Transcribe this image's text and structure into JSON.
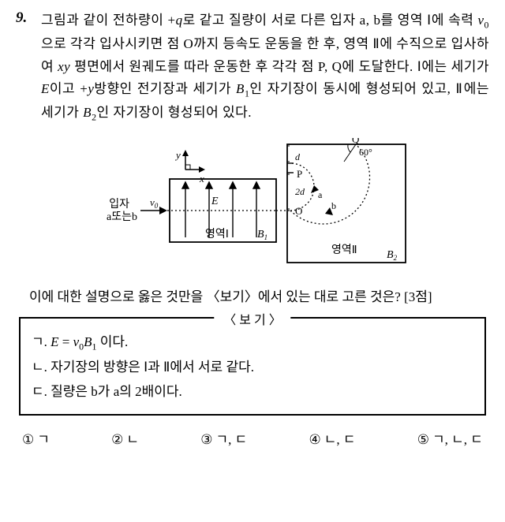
{
  "question": {
    "number": "9.",
    "text_html": "그림과 같이 전하량이 +<span class='var'>q</span>로 같고 질량이 서로 다른 입자 a, b를 영역 Ⅰ에 속력 <span class='var'>v</span><span class='sub'>0</span>으로 각각 입사시키면 점 O까지 등속도 운동을 한 후, 영역 Ⅱ에 수직으로 입사하여 <span class='var'>xy</span> 평면에서 원궤도를 따라 운동한 후 각각 점 P, Q에 도달한다. Ⅰ에는 세기가 <span class='var'>E</span>이고 +<span class='var'>y</span>방향인 전기장과 세기가 <span class='var'>B</span><span class='sub'>1</span>인 자기장이 동시에 형성되어 있고, Ⅱ에는 세기가 <span class='var'>B</span><span class='sub'>2</span>인 자기장이 형성되어 있다."
  },
  "figure": {
    "particle_label": "입자\na또는b",
    "axes": {
      "y": "y",
      "x": "x"
    },
    "v0_label": "v0",
    "region1": {
      "label": "영역Ⅰ",
      "E": "E",
      "B1": "B1"
    },
    "region2": {
      "label": "영역Ⅱ",
      "B2": "B2",
      "O": "O",
      "P": "P",
      "Q": "Q",
      "angle": "60°",
      "d": "d",
      "two_d": "2d",
      "a_label": "a",
      "b_label": "b"
    },
    "colors": {
      "stroke": "#000000",
      "fill_bg": "#ffffff"
    },
    "line_width": 1.6
  },
  "sub_question": "이에 대한 설명으로 옳은 것만을 〈보기〉에서 있는 대로 고른 것은? [3점]",
  "bogi": {
    "title": "〈 보 기 〉",
    "items": [
      "ㄱ. <span class='var'>E</span> = <span class='var'>v</span><span class='sub'>0</span><span class='var'>B</span><span class='sub'>1</span> 이다.",
      "ㄴ. 자기장의 방향은 Ⅰ과 Ⅱ에서 서로 같다.",
      "ㄷ. 질량은 b가 a의 2배이다."
    ]
  },
  "choices": [
    {
      "num": "①",
      "text": "ㄱ"
    },
    {
      "num": "②",
      "text": "ㄴ"
    },
    {
      "num": "③",
      "text": "ㄱ, ㄷ"
    },
    {
      "num": "④",
      "text": "ㄴ, ㄷ"
    },
    {
      "num": "⑤",
      "text": "ㄱ, ㄴ, ㄷ"
    }
  ]
}
